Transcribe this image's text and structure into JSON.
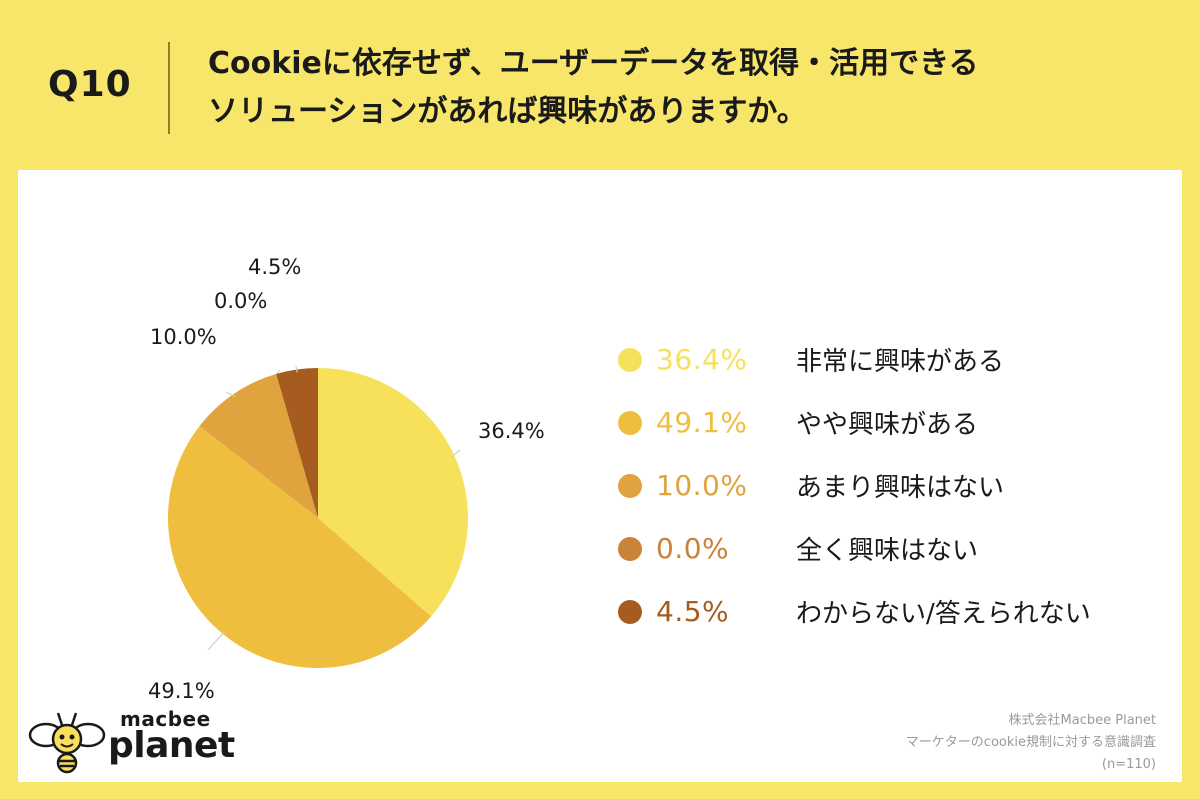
{
  "header": {
    "question_number": "Q10",
    "question_line1": "Cookieに依存せず、ユーザーデータを取得・活用できる",
    "question_line2": "ソリューションがあれば興味がありますか。"
  },
  "colors": {
    "background": "#F7E66A",
    "card": "#FFFFFF"
  },
  "chart_data": {
    "type": "pie",
    "title": "",
    "start_angle_deg": 0,
    "direction": "clockwise",
    "slices": [
      {
        "label": "非常に興味がある",
        "value": 36.4,
        "display": "36.4%",
        "color": "#F7E15A"
      },
      {
        "label": "やや興味がある",
        "value": 49.1,
        "display": "49.1%",
        "color": "#F0BE3F"
      },
      {
        "label": "あまり興味はない",
        "value": 10.0,
        "display": "10.0%",
        "color": "#E0A33D"
      },
      {
        "label": "全く興味はない",
        "value": 0.0,
        "display": "0.0%",
        "color": "#C98237"
      },
      {
        "label": "わからない/答えられない",
        "value": 4.5,
        "display": "4.5%",
        "color": "#A65C1E"
      }
    ],
    "legend_position": "right"
  },
  "logo": {
    "small": "macbee",
    "big": "planet"
  },
  "source": {
    "line1": "株式会社Macbee Planet",
    "line2": "マーケターのcookie規制に対する意識調査",
    "line3": "(n=110)"
  }
}
